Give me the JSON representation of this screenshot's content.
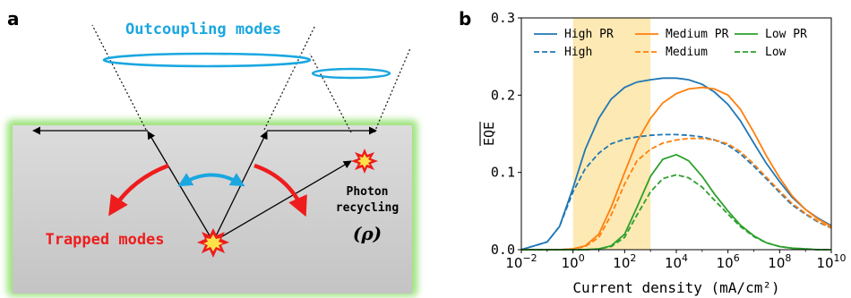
{
  "panel_a": {
    "letter": "a",
    "outcoupling_label": "Outcoupling modes",
    "trapped_label": "Trapped modes",
    "photon_label_line1": "Photon",
    "photon_label_line2": "recycling",
    "rho_label": "(ρ)",
    "colors": {
      "outcoupling": "#1aa7e0",
      "trapped": "#ee1c1c",
      "slab_glow": "#9be37a",
      "slab_fill": "#d2d2d2"
    },
    "icons": [
      "emission-burst-icon",
      "photon-recycling-burst-icon"
    ]
  },
  "panel_b": {
    "letter": "b"
  },
  "chart_data": {
    "type": "line",
    "xscale": "log",
    "xlabel": "Current density (mA/cm²)",
    "ylabel": "EQE",
    "ylabel_overline": true,
    "xlim": [
      0.01,
      10000000000
    ],
    "ylim": [
      0,
      0.3
    ],
    "x_ticks": [
      {
        "value": 0.01,
        "base": "10",
        "exp": "−2"
      },
      {
        "value": 1,
        "base": "10",
        "exp": "0"
      },
      {
        "value": 100,
        "base": "10",
        "exp": "2"
      },
      {
        "value": 10000,
        "base": "10",
        "exp": "4"
      },
      {
        "value": 1000000,
        "base": "10",
        "exp": "6"
      },
      {
        "value": 100000000,
        "base": "10",
        "exp": "8"
      },
      {
        "value": 10000000000,
        "base": "10",
        "exp": "10"
      }
    ],
    "y_ticks": [
      {
        "value": 0,
        "label": "0.0"
      },
      {
        "value": 0.1,
        "label": "0.1"
      },
      {
        "value": 0.2,
        "label": "0.2"
      },
      {
        "value": 0.3,
        "label": "0.3"
      }
    ],
    "shaded_region": {
      "x": [
        1,
        1000
      ],
      "color": "#fde9b3"
    },
    "legend_position": "top",
    "grid": false,
    "x": [
      0.01,
      0.1,
      0.3,
      1,
      3,
      10,
      30,
      100,
      300,
      1000,
      3000,
      10000,
      30000,
      100000,
      300000,
      1000000,
      3000000,
      10000000,
      30000000,
      100000000,
      300000000,
      1000000000,
      3000000000,
      10000000000
    ],
    "series": [
      {
        "name": "High PR",
        "color": "#1f77b4",
        "dash": "solid",
        "values": [
          0.0,
          0.01,
          0.03,
          0.08,
          0.13,
          0.17,
          0.195,
          0.21,
          0.217,
          0.22,
          0.222,
          0.222,
          0.22,
          0.214,
          0.204,
          0.188,
          0.167,
          0.138,
          0.112,
          0.088,
          0.068,
          0.052,
          0.041,
          0.031
        ]
      },
      {
        "name": "High",
        "color": "#1f77b4",
        "dash": "dashed",
        "values": [
          0.0,
          0.01,
          0.03,
          0.075,
          0.105,
          0.125,
          0.137,
          0.143,
          0.146,
          0.148,
          0.149,
          0.149,
          0.148,
          0.146,
          0.142,
          0.135,
          0.124,
          0.108,
          0.092,
          0.074,
          0.058,
          0.046,
          0.036,
          0.028
        ]
      },
      {
        "name": "Medium PR",
        "color": "#ff7f0e",
        "dash": "solid",
        "values": [
          0.0,
          0.0,
          0.0,
          0.001,
          0.005,
          0.02,
          0.055,
          0.1,
          0.14,
          0.17,
          0.19,
          0.202,
          0.208,
          0.21,
          0.208,
          0.2,
          0.182,
          0.152,
          0.122,
          0.093,
          0.07,
          0.052,
          0.04,
          0.03
        ]
      },
      {
        "name": "Medium",
        "color": "#ff7f0e",
        "dash": "dashed",
        "values": [
          0.0,
          0.0,
          0.0,
          0.001,
          0.004,
          0.016,
          0.045,
          0.085,
          0.115,
          0.13,
          0.138,
          0.142,
          0.144,
          0.144,
          0.142,
          0.137,
          0.127,
          0.111,
          0.094,
          0.076,
          0.06,
          0.047,
          0.037,
          0.028
        ]
      },
      {
        "name": "Low PR",
        "color": "#2ca02c",
        "dash": "solid",
        "values": [
          0.0,
          0.0,
          0.0,
          0.0,
          0.0,
          0.001,
          0.005,
          0.02,
          0.055,
          0.095,
          0.117,
          0.123,
          0.115,
          0.095,
          0.072,
          0.05,
          0.032,
          0.018,
          0.009,
          0.004,
          0.002,
          0.001,
          0.0,
          0.0
        ]
      },
      {
        "name": "Low",
        "color": "#2ca02c",
        "dash": "dashed",
        "values": [
          0.0,
          0.0,
          0.0,
          0.0,
          0.0,
          0.001,
          0.004,
          0.016,
          0.045,
          0.075,
          0.092,
          0.097,
          0.093,
          0.081,
          0.064,
          0.046,
          0.03,
          0.017,
          0.009,
          0.004,
          0.002,
          0.001,
          0.0,
          0.0
        ]
      }
    ]
  }
}
